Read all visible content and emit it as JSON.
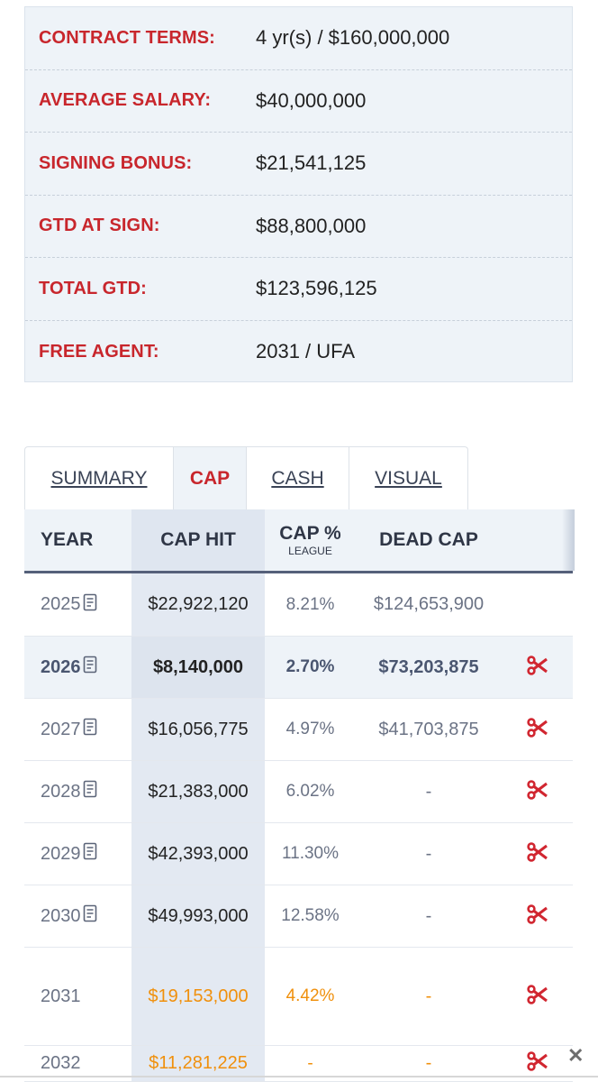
{
  "contract_terms": [
    {
      "label": "CONTRACT TERMS:",
      "value": "4 yr(s) / $160,000,000"
    },
    {
      "label": "AVERAGE SALARY:",
      "value": "$40,000,000"
    },
    {
      "label": "SIGNING BONUS:",
      "value": "$21,541,125"
    },
    {
      "label": "GTD AT SIGN:",
      "value": "$88,800,000"
    },
    {
      "label": "TOTAL GTD:",
      "value": "$123,596,125"
    },
    {
      "label": "FREE AGENT:",
      "value": "2031 / UFA"
    }
  ],
  "tabs": [
    {
      "label": "SUMMARY",
      "active": false
    },
    {
      "label": "CAP",
      "active": true
    },
    {
      "label": "CASH",
      "active": false
    },
    {
      "label": "VISUAL",
      "active": false
    }
  ],
  "table": {
    "headers": {
      "year": "YEAR",
      "cap_hit": "CAP HIT",
      "cap_pct": "CAP %",
      "cap_pct_sub": "LEAGUE",
      "dead_cap": "DEAD CAP"
    },
    "rows": [
      {
        "year": "2025",
        "cap_hit": "$22,922,120",
        "cap_pct": "8.21%",
        "dead_cap": "$124,653,900",
        "doc": true,
        "cut": false
      },
      {
        "year": "2026",
        "cap_hit": "$8,140,000",
        "cap_pct": "2.70%",
        "dead_cap": "$73,203,875",
        "doc": true,
        "cut": true,
        "highlight": true
      },
      {
        "year": "2027",
        "cap_hit": "$16,056,775",
        "cap_pct": "4.97%",
        "dead_cap": "$41,703,875",
        "doc": true,
        "cut": true
      },
      {
        "year": "2028",
        "cap_hit": "$21,383,000",
        "cap_pct": "6.02%",
        "dead_cap": "-",
        "doc": true,
        "cut": true
      },
      {
        "year": "2029",
        "cap_hit": "$42,393,000",
        "cap_pct": "11.30%",
        "dead_cap": "-",
        "doc": true,
        "cut": true
      },
      {
        "year": "2030",
        "cap_hit": "$49,993,000",
        "cap_pct": "12.58%",
        "dead_cap": "-",
        "doc": true,
        "cut": true
      },
      {
        "year": "2031",
        "cap_hit": "$19,153,000",
        "cap_pct": "4.42%",
        "dead_cap": "-",
        "doc": false,
        "cut": true,
        "future": true
      },
      {
        "year": "2032",
        "cap_hit": "$11,281,225",
        "cap_pct": "-",
        "dead_cap": "-",
        "doc": false,
        "cut": true,
        "future": true
      }
    ]
  },
  "colors": {
    "accent_red": "#c8262c",
    "future_orange": "#f0900c",
    "panel_bg": "#eef3f8"
  },
  "icons": {
    "doc": "document-icon",
    "cut": "scissors-icon",
    "close": "close-icon"
  },
  "close_glyph": "✕"
}
